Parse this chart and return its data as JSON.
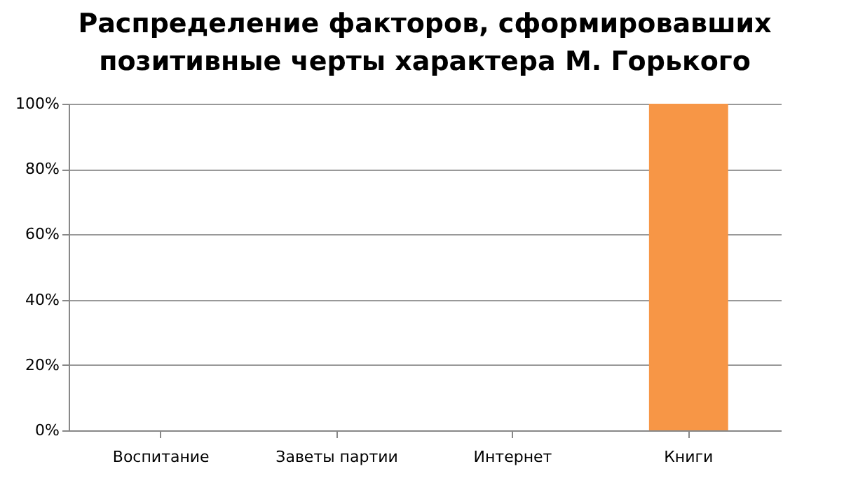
{
  "chart_data": {
    "type": "bar",
    "title": "Распределение факторов, сформировавших\nпозитивные черты характера М. Горького",
    "categories": [
      "Воспитание",
      "Заветы партии",
      "Интернет",
      "Книги"
    ],
    "values": [
      0,
      0,
      0,
      100
    ],
    "color": "#f79646",
    "ylim": [
      0,
      100
    ],
    "yticks": [
      {
        "value": 0,
        "label": "0%"
      },
      {
        "value": 20,
        "label": "20%"
      },
      {
        "value": 40,
        "label": "40%"
      },
      {
        "value": 60,
        "label": "60%"
      },
      {
        "value": 80,
        "label": "80%"
      },
      {
        "value": 100,
        "label": "100%"
      }
    ],
    "grid": "y"
  }
}
